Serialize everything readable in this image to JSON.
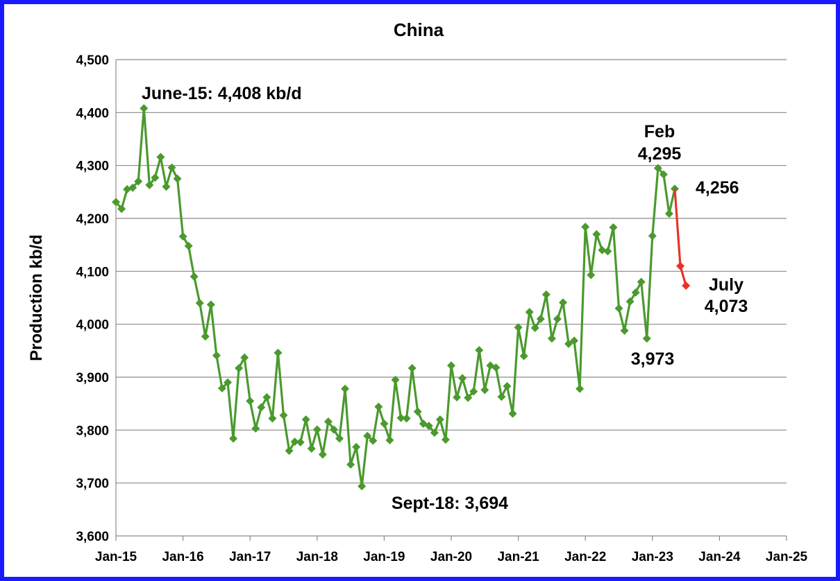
{
  "chart_data": {
    "type": "line",
    "title": "China",
    "xlabel": "",
    "ylabel": "Production kb/d",
    "ylim": [
      3600,
      4500
    ],
    "yticks": [
      "3,600",
      "3,700",
      "3,800",
      "3,900",
      "4,000",
      "4,100",
      "4,200",
      "4,300",
      "4,400",
      "4,500"
    ],
    "xticks": [
      "Jan-15",
      "Jan-16",
      "Jan-17",
      "Jan-18",
      "Jan-19",
      "Jan-20",
      "Jan-21",
      "Jan-22",
      "Jan-23",
      "Jan-24",
      "Jan-25"
    ],
    "grid": "horizontal",
    "x_start": "2015-01",
    "x_end": "2025-01",
    "series": [
      {
        "color": "#4a9a2e",
        "marker": "diamond",
        "start": "2015-01",
        "values": [
          4231,
          4218,
          4255,
          4258,
          4270,
          4408,
          4263,
          4277,
          4316,
          4260,
          4296,
          4275,
          4166,
          4148,
          4090,
          4040,
          3977,
          4037,
          3941,
          3879,
          3890,
          3784,
          3917,
          3937,
          3855,
          3803,
          3843,
          3862,
          3822,
          3946,
          3828,
          3761,
          3778,
          3777,
          3820,
          3765,
          3801,
          3754,
          3816,
          3801,
          3784,
          3878,
          3735,
          3768,
          3694,
          3789,
          3780,
          3844,
          3812,
          3781,
          3895,
          3823,
          3822,
          3917,
          3835,
          3812,
          3808,
          3795,
          3820,
          3782,
          3922,
          3862,
          3898,
          3861,
          3873,
          3951,
          3876,
          3922,
          3918,
          3863,
          3883,
          3831,
          3994,
          3940,
          4023,
          3993,
          4010,
          4056,
          3973,
          4010,
          4041,
          3963,
          3969,
          3878,
          4184,
          4093,
          4170,
          4140,
          4138,
          4183,
          4030,
          3988,
          4043,
          4060,
          4080,
          3973,
          4167,
          4295,
          4283,
          4209,
          4256
        ]
      },
      {
        "color": "#e8332a",
        "marker": "diamond",
        "start": "2023-05",
        "values": [
          4256,
          4110,
          4073
        ]
      }
    ],
    "annotations": [
      {
        "text": "June-15: 4,408 kb/d"
      },
      {
        "text": "Feb"
      },
      {
        "text": "4,295"
      },
      {
        "text": "4,256"
      },
      {
        "text": "July"
      },
      {
        "text": "4,073"
      },
      {
        "text": "3,973"
      },
      {
        "text": "Sept-18: 3,694"
      }
    ]
  }
}
